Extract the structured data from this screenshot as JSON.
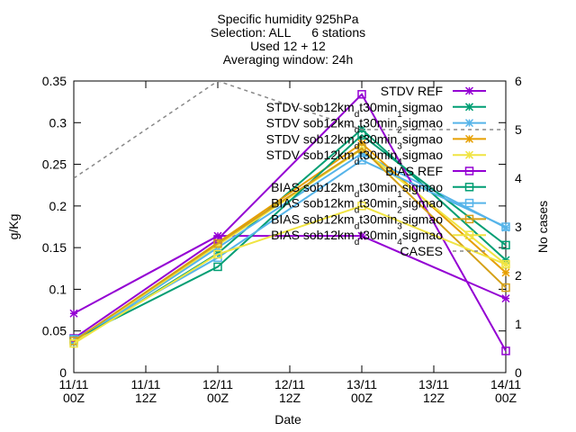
{
  "chart_data": {
    "type": "line",
    "title_lines": [
      "Specific humidity 925hPa",
      "Selection: ALL      6 stations",
      "Used 12 + 12",
      "Averaging window: 24h"
    ],
    "xlabel": "Date",
    "ylabel": "g/Kg",
    "y2label": "No cases",
    "x_ticks": [
      {
        "x": 0,
        "line1": "11/11",
        "line2": "00Z"
      },
      {
        "x": 0.5,
        "line1": "11/11",
        "line2": "12Z"
      },
      {
        "x": 1,
        "line1": "12/11",
        "line2": "00Z"
      },
      {
        "x": 1.5,
        "line1": "12/11",
        "line2": "12Z"
      },
      {
        "x": 2,
        "line1": "13/11",
        "line2": "00Z"
      },
      {
        "x": 2.5,
        "line1": "13/11",
        "line2": "12Z"
      },
      {
        "x": 3,
        "line1": "14/11",
        "line2": "00Z"
      }
    ],
    "xlim": [
      0,
      3
    ],
    "ylim": [
      0,
      0.35
    ],
    "y_ticks": [
      "0",
      "0.05",
      "0.1",
      "0.15",
      "0.2",
      "0.25",
      "0.3",
      "0.35"
    ],
    "y2lim": [
      0,
      6
    ],
    "y2_ticks": [
      "0",
      "1",
      "2",
      "3",
      "4",
      "5",
      "6"
    ],
    "legend_position": "top-right",
    "x": [
      0,
      1,
      2,
      3
    ],
    "series": [
      {
        "name": "STDV REF",
        "label": {
          "base": "STDV REF"
        },
        "color": "#9400d3",
        "marker": "x",
        "dash": false,
        "values": [
          0.071,
          0.164,
          0.164,
          0.089
        ]
      },
      {
        "name": "STDV sob12km_d t30min_1 sigmao",
        "label": {
          "base": "STDV sob12km",
          "s1": "d",
          "mid": "t30min",
          "s2": "1",
          "end": "sigmao"
        },
        "color": "#009e73",
        "marker": "x",
        "dash": false,
        "values": [
          0.036,
          0.143,
          0.292,
          0.135
        ]
      },
      {
        "name": "STDV sob12km_d t30min_2 sigmao",
        "label": {
          "base": "STDV sob12km",
          "s1": "d",
          "mid": "t30min",
          "s2": "2",
          "end": "sigmao"
        },
        "color": "#56b4e9",
        "marker": "x",
        "dash": false,
        "values": [
          0.036,
          0.15,
          0.263,
          0.174
        ]
      },
      {
        "name": "STDV sob12km_d t30min_3 sigmao",
        "label": {
          "base": "STDV sob12km",
          "s1": "d",
          "mid": "t30min",
          "s2": "3",
          "end": "sigmao"
        },
        "color": "#e69f00",
        "marker": "x",
        "dash": false,
        "values": [
          0.037,
          0.156,
          0.275,
          0.12
        ]
      },
      {
        "name": "STDV sob12km_d t30min_4 sigmao",
        "label": {
          "base": "STDV sob12km",
          "s1": "d",
          "mid": "t30min",
          "s2": "4",
          "end": "sigmao"
        },
        "color": "#f0e442",
        "marker": "x",
        "dash": false,
        "values": [
          0.037,
          0.153,
          0.268,
          0.13
        ]
      },
      {
        "name": "BIAS REF",
        "label": {
          "base": "BIAS REF"
        },
        "color": "#9400d3",
        "marker": "square",
        "dash": false,
        "values": [
          0.041,
          0.16,
          0.334,
          0.026
        ]
      },
      {
        "name": "BIAS sob12km_d t30min_1 sigmao",
        "label": {
          "base": "BIAS sob12km",
          "s1": "d",
          "mid": "t30min",
          "s2": "1",
          "end": "sigmao"
        },
        "color": "#009e73",
        "marker": "square",
        "dash": false,
        "values": [
          0.04,
          0.127,
          0.285,
          0.153
        ]
      },
      {
        "name": "BIAS sob12km_d t30min_2 sigmao",
        "label": {
          "base": "BIAS sob12km",
          "s1": "d",
          "mid": "t30min",
          "s2": "2",
          "end": "sigmao"
        },
        "color": "#56b4e9",
        "marker": "square",
        "dash": false,
        "values": [
          0.04,
          0.138,
          0.255,
          0.175
        ]
      },
      {
        "name": "BIAS sob12km_d t30min_3 sigmao",
        "label": {
          "base": "BIAS sob12km",
          "s1": "d",
          "mid": "t30min",
          "s2": "3",
          "end": "sigmao"
        },
        "color": "#d4a017",
        "marker": "square",
        "dash": false,
        "values": [
          0.038,
          0.155,
          0.269,
          0.102
        ]
      },
      {
        "name": "BIAS sob12km_d t30min_4 sigmao",
        "label": {
          "base": "BIAS sob12km",
          "s1": "d",
          "mid": "t30min",
          "s2": "4",
          "end": "sigmao"
        },
        "color": "#f0e442",
        "marker": "square",
        "dash": false,
        "values": [
          0.035,
          0.142,
          0.2,
          0.13
        ]
      },
      {
        "name": "CASES",
        "label": {
          "base": "CASES"
        },
        "color": "#888888",
        "marker": "none",
        "dash": true,
        "axis": "y2",
        "x": [
          0,
          1,
          2,
          3
        ],
        "values": [
          4,
          6,
          5,
          5
        ]
      }
    ]
  }
}
